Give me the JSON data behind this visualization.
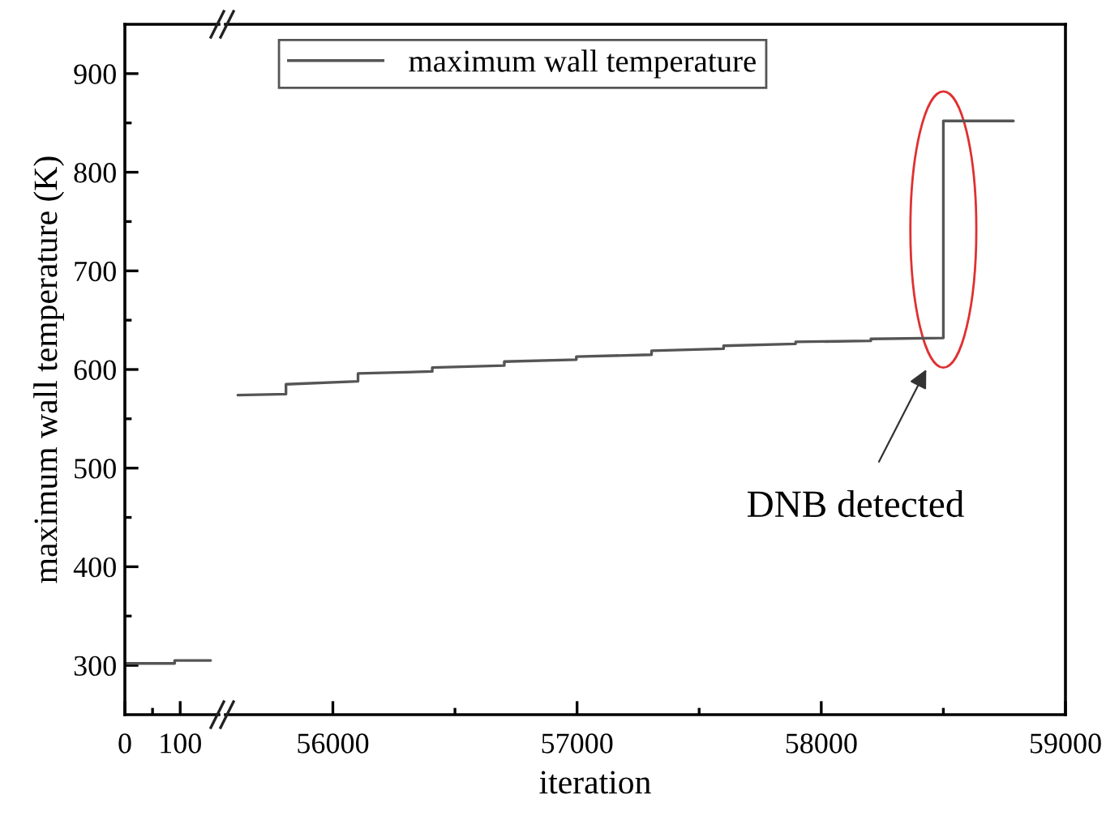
{
  "chart_data": [
    {
      "type": "line",
      "ylabel": "maximum wall temperature (K)",
      "xlim": [
        0,
        170
      ],
      "xticks": [
        0,
        {
          "value": 50,
          "label": null
        },
        100
      ],
      "ylim": [
        250,
        950
      ],
      "yticks": [
        300,
        {
          "value": 350,
          "label": null
        },
        400,
        {
          "value": 450,
          "label": null
        },
        500,
        {
          "value": 550,
          "label": null
        },
        600,
        {
          "value": 650,
          "label": null
        },
        700,
        {
          "value": 750,
          "label": null
        },
        800,
        {
          "value": 850,
          "label": null
        },
        900
      ],
      "series": [
        {
          "color": "#555555",
          "x": [
            0,
            90,
            90,
            155
          ],
          "values": [
            302,
            302,
            305,
            305
          ]
        }
      ]
    },
    {
      "type": "line",
      "xlabel": "iteration",
      "xlim": [
        55560,
        59000
      ],
      "xticks": [
        56000,
        {
          "value": 56500,
          "label": null
        },
        57000,
        {
          "value": 57500,
          "label": null
        },
        58000,
        {
          "value": 58500,
          "label": null
        },
        59000
      ],
      "ylim": [
        250,
        950
      ],
      "tick_labels": "x",
      "legend": "top left",
      "annotations": [
        "DNB detected"
      ],
      "series": [
        {
          "name": "maximum wall temperature",
          "color": "#555555",
          "x": [
            55611,
            55808,
            55808,
            56103,
            56103,
            56407,
            56407,
            56702,
            56702,
            56997,
            56997,
            57305,
            57305,
            57600,
            57600,
            57895,
            57895,
            58203,
            58203,
            58500,
            58500,
            58787
          ],
          "values": [
            574,
            575,
            585,
            588,
            596,
            598,
            602,
            604,
            608,
            610,
            613,
            615,
            619,
            621,
            624,
            626,
            628,
            629,
            631,
            632,
            852,
            852
          ]
        }
      ]
    }
  ]
}
